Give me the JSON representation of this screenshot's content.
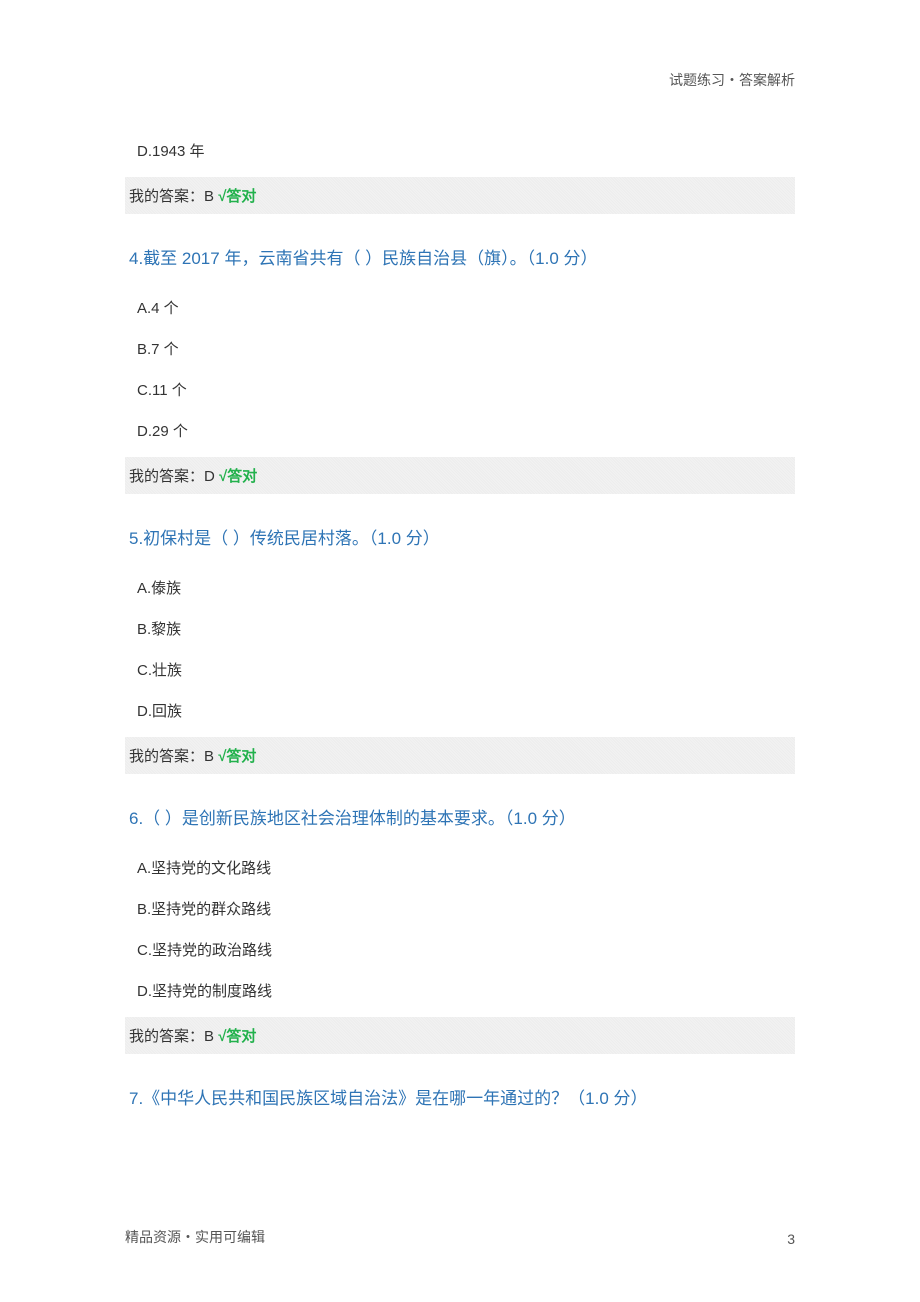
{
  "header": {
    "right": "试题练习・答案解析"
  },
  "q3": {
    "optD": "D.1943 年",
    "ans_prefix": "我的答案：B ",
    "ans_mark": "√答对"
  },
  "q4": {
    "title": "4.截至 2017 年，云南省共有（ ）民族自治县（旗）。（1.0 分）",
    "optA": "A.4 个",
    "optB": "B.7 个",
    "optC": "C.11 个",
    "optD": "D.29 个",
    "ans_prefix": "我的答案：D ",
    "ans_mark": "√答对"
  },
  "q5": {
    "title": "5.初保村是（ ）传统民居村落。（1.0 分）",
    "optA": "A.傣族",
    "optB": "B.黎族",
    "optC": "C.壮族",
    "optD": "D.回族",
    "ans_prefix": "我的答案：B ",
    "ans_mark": "√答对"
  },
  "q6": {
    "title": "6.（ ）是创新民族地区社会治理体制的基本要求。（1.0 分）",
    "optA": "A.坚持党的文化路线",
    "optB": "B.坚持党的群众路线",
    "optC": "C.坚持党的政治路线",
    "optD": "D.坚持党的制度路线",
    "ans_prefix": "我的答案：B ",
    "ans_mark": "√答对"
  },
  "q7": {
    "title": "7.《中华人民共和国民族区域自治法》是在哪一年通过的？（1.0 分）"
  },
  "footer": {
    "left": "精品资源・实用可编辑",
    "page": "3"
  }
}
